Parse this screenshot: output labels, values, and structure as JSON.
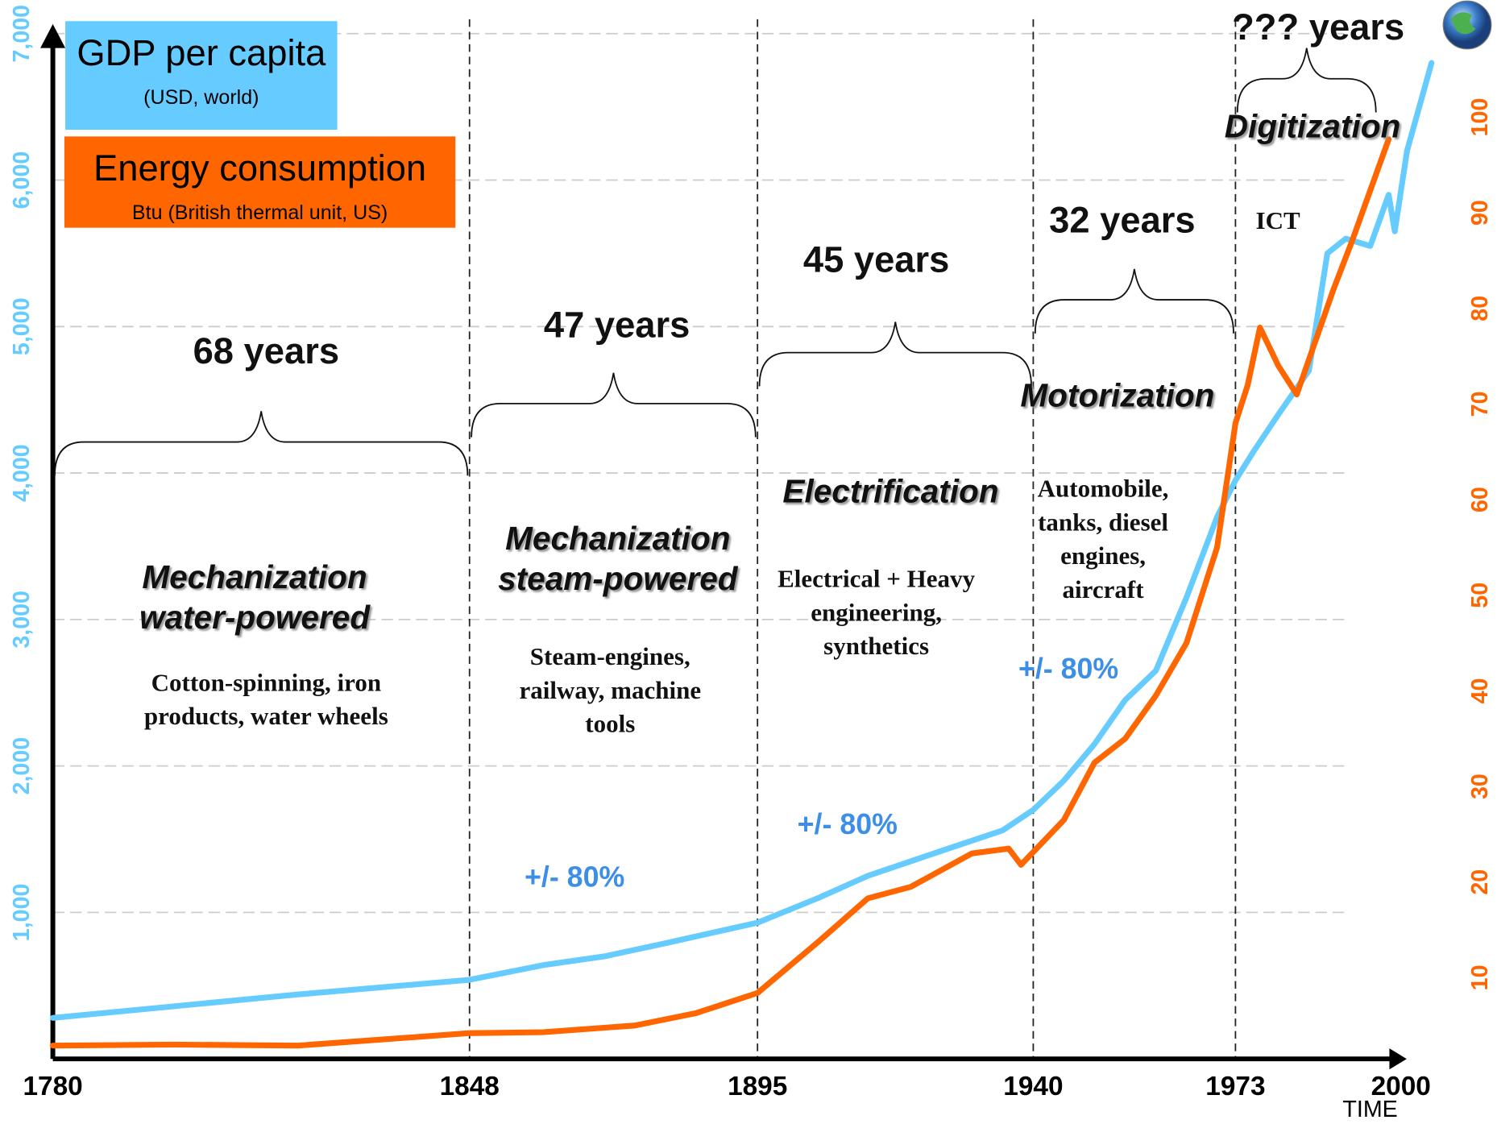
{
  "chart_data": {
    "type": "line",
    "x_label": "TIME",
    "xlim": [
      1780,
      2000
    ],
    "xticks": [
      1780,
      1848,
      1895,
      1940,
      1973,
      2000
    ],
    "ylim": [
      0,
      7000
    ],
    "yticks": [
      {
        "value": 1000,
        "label": "1,000"
      },
      {
        "value": 2000,
        "label": "2,000"
      },
      {
        "value": 3000,
        "label": "3,000"
      },
      {
        "value": 4000,
        "label": "4,000"
      },
      {
        "value": 5000,
        "label": "5,000"
      },
      {
        "value": 6000,
        "label": "6,000"
      },
      {
        "value": 7000,
        "label": "7,000"
      }
    ],
    "y2lim": [
      0,
      100
    ],
    "y2ticks": [
      10,
      20,
      30,
      40,
      50,
      60,
      70,
      80,
      90,
      100
    ],
    "grid": true,
    "series": [
      {
        "name": "GDP per capita",
        "unit": "(USD, world)",
        "color": "#66ccff",
        "x": [
          1780,
          1800,
          1820,
          1848,
          1860,
          1870,
          1880,
          1895,
          1905,
          1913,
          1925,
          1935,
          1940,
          1945,
          1950,
          1955,
          1960,
          1965,
          1970,
          1973,
          1976,
          1980,
          1985,
          1988,
          1991,
          1995,
          1998,
          1999,
          2001,
          2005
        ],
        "values": [
          280,
          360,
          440,
          540,
          640,
          700,
          790,
          930,
          1100,
          1250,
          1420,
          1560,
          1700,
          1900,
          2150,
          2450,
          2650,
          3150,
          3700,
          3950,
          4150,
          4400,
          4700,
          5500,
          5600,
          5550,
          5900,
          5650,
          6200,
          6800
        ]
      },
      {
        "name": "Energy consumption",
        "unit": "Btu (British thermal unit, US)",
        "color": "#ff6600",
        "axis": "y2",
        "x": [
          1780,
          1800,
          1820,
          1848,
          1860,
          1875,
          1885,
          1895,
          1905,
          1913,
          1920,
          1930,
          1936,
          1938,
          1945,
          1950,
          1955,
          1960,
          1965,
          1970,
          1973,
          1975,
          1977,
          1980,
          1983,
          1989,
          1992,
          1998
        ],
        "values": [
          2.9,
          3,
          2.9,
          4.2,
          4.3,
          5,
          6.3,
          8.4,
          13.8,
          18.3,
          19.5,
          23,
          23.5,
          21.8,
          26.5,
          32.5,
          35,
          39.5,
          45,
          55,
          68,
          72,
          78,
          74,
          71,
          82,
          87,
          97.7
        ]
      }
    ],
    "periods": [
      {
        "duration": "68 years",
        "name": "Mechanization water-powered",
        "description": "Cotton-spinning, iron products, water wheels"
      },
      {
        "duration": "47 years",
        "name": "Mechanization steam-powered",
        "description": "Steam-engines, railway, machine tools",
        "growth": "+/- 80%"
      },
      {
        "duration": "45 years",
        "name": "Electrification",
        "description": "Electrical + Heavy engineering, synthetics",
        "growth": "+/- 80%"
      },
      {
        "duration": "32 years",
        "name": "Motorization",
        "description": "Automobile, tanks, diesel engines, aircraft",
        "growth": "+/- 80%"
      },
      {
        "duration": "??? years",
        "name": "Digitization",
        "description": "ICT"
      }
    ]
  }
}
